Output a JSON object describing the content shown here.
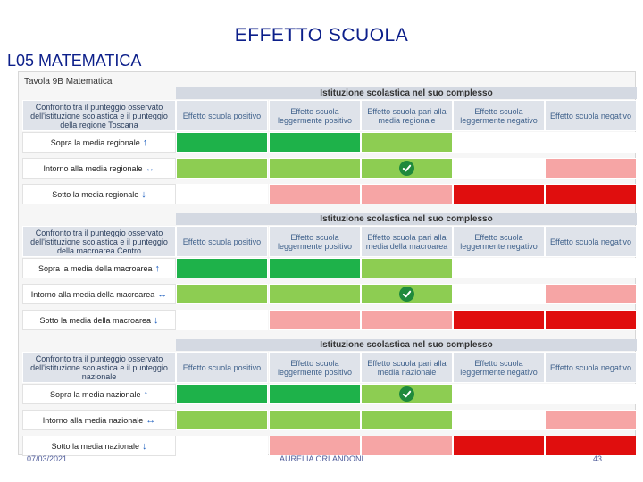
{
  "title": "EFFETTO SCUOLA",
  "subtitle": "L05 MATEMATICA",
  "screenshot": {
    "caption": "Tavola 9B Matematica"
  },
  "colors": {
    "dark_green": "#1eb24a",
    "light_green": "#8dcd52",
    "light_red": "#f6a5a5",
    "dark_red": "#e00e0e",
    "white": "#ffffff",
    "check_icon": "#1f8a3c"
  },
  "panels": [
    {
      "header": "Istituzione scolastica nel suo complesso",
      "first_column": "Confronto tra il punteggio osservato dell'istituzione scolastica e il punteggio della regione Toscana",
      "columns": [
        "Effetto scuola positivo",
        "Effetto scuola leggermente positivo",
        "Effetto scuola pari alla media regionale",
        "Effetto scuola leggermente negativo",
        "Effetto scuola negativo"
      ],
      "rows": [
        {
          "label": "Sopra la media regionale",
          "arrow": "up-arrow-icon",
          "cells": [
            "dark_green",
            "dark_green",
            "light_green",
            "white",
            "white"
          ]
        },
        {
          "label": "Intorno alla media regionale",
          "arrow": "left-right-arrow-icon",
          "cells": [
            "light_green",
            "light_green",
            "check",
            "white",
            "light_red"
          ]
        },
        {
          "label": "Sotto la media regionale",
          "arrow": "down-arrow-icon",
          "cells": [
            "white",
            "light_red",
            "light_red",
            "dark_red",
            "dark_red"
          ]
        }
      ]
    },
    {
      "header": "Istituzione scolastica nel suo complesso",
      "first_column": "Confronto tra il punteggio osservato dell'istituzione scolastica e il punteggio della macroarea Centro",
      "columns": [
        "Effetto scuola positivo",
        "Effetto scuola leggermente positivo",
        "Effetto scuola pari alla media della macroarea",
        "Effetto scuola leggermente negativo",
        "Effetto scuola negativo"
      ],
      "rows": [
        {
          "label": "Sopra la media della macroarea",
          "arrow": "up-arrow-icon",
          "cells": [
            "dark_green",
            "dark_green",
            "light_green",
            "white",
            "white"
          ]
        },
        {
          "label": "Intorno alla media della macroarea",
          "arrow": "left-right-arrow-icon",
          "cells": [
            "light_green",
            "light_green",
            "check",
            "white",
            "light_red"
          ]
        },
        {
          "label": "Sotto la media della macroarea",
          "arrow": "down-arrow-icon",
          "cells": [
            "white",
            "light_red",
            "light_red",
            "dark_red",
            "dark_red"
          ]
        }
      ]
    },
    {
      "header": "Istituzione scolastica nel suo complesso",
      "first_column": "Confronto tra il punteggio osservato dell'istituzione scolastica e il punteggio nazionale",
      "columns": [
        "Effetto scuola positivo",
        "Effetto scuola leggermente positivo",
        "Effetto scuola pari alla media nazionale",
        "Effetto scuola leggermente negativo",
        "Effetto scuola negativo"
      ],
      "rows": [
        {
          "label": "Sopra la media nazionale",
          "arrow": "up-arrow-icon",
          "cells": [
            "dark_green",
            "dark_green",
            "check",
            "white",
            "white"
          ]
        },
        {
          "label": "Intorno alla media nazionale",
          "arrow": "left-right-arrow-icon",
          "cells": [
            "light_green",
            "light_green",
            "light_green",
            "white",
            "light_red"
          ]
        },
        {
          "label": "Sotto la media nazionale",
          "arrow": "down-arrow-icon",
          "cells": [
            "white",
            "light_red",
            "light_red",
            "dark_red",
            "dark_red"
          ]
        }
      ]
    }
  ],
  "footer": {
    "date": "07/03/2021",
    "author": "AURELIA ORLANDONI",
    "page": "43"
  }
}
